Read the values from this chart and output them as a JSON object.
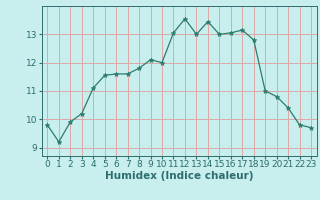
{
  "x": [
    0,
    1,
    2,
    3,
    4,
    5,
    6,
    7,
    8,
    9,
    10,
    11,
    12,
    13,
    14,
    15,
    16,
    17,
    18,
    19,
    20,
    21,
    22,
    23
  ],
  "y": [
    9.8,
    9.2,
    9.9,
    10.2,
    11.1,
    11.55,
    11.6,
    11.6,
    11.8,
    12.1,
    12.0,
    13.05,
    13.55,
    13.0,
    13.45,
    13.0,
    13.05,
    13.15,
    12.8,
    11.0,
    10.8,
    10.4,
    9.8,
    9.7
  ],
  "line_color": "#2d7d6e",
  "marker": "*",
  "marker_size": 3.5,
  "bg_color": "#c8eeee",
  "grid_color": "#dba8a8",
  "xlabel": "Humidex (Indice chaleur)",
  "ylim": [
    8.7,
    14.0
  ],
  "xlim": [
    -0.5,
    23.5
  ],
  "yticks": [
    9,
    10,
    11,
    12,
    13
  ],
  "xticks": [
    0,
    1,
    2,
    3,
    4,
    5,
    6,
    7,
    8,
    9,
    10,
    11,
    12,
    13,
    14,
    15,
    16,
    17,
    18,
    19,
    20,
    21,
    22,
    23
  ],
  "tick_color": "#2d6e6e",
  "label_fontsize": 6.5,
  "xlabel_fontsize": 7.5
}
